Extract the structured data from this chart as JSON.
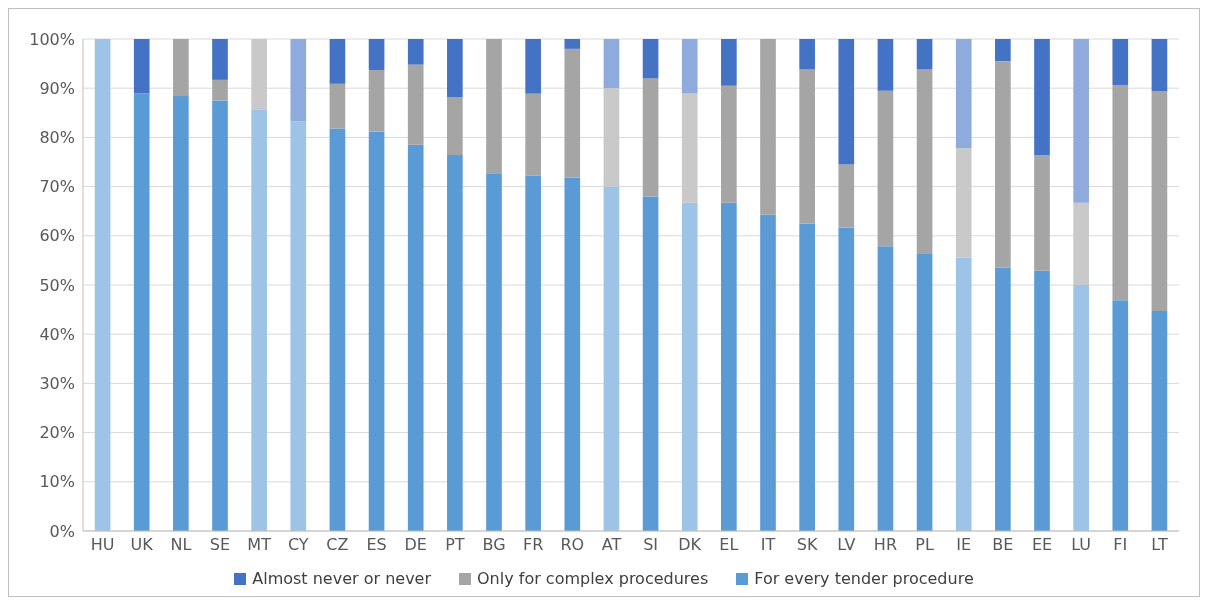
{
  "chart_data": {
    "type": "bar",
    "stacked": true,
    "categories": [
      "HU",
      "UK",
      "NL",
      "SE",
      "MT",
      "CY",
      "CZ",
      "ES",
      "DE",
      "PT",
      "BG",
      "FR",
      "RO",
      "AT",
      "SI",
      "DK",
      "EL",
      "IT",
      "SK",
      "LV",
      "HR",
      "PL",
      "IE",
      "BE",
      "EE",
      "LU",
      "FI",
      "LT"
    ],
    "series": [
      {
        "name": "For every tender procedure",
        "color": "#5b9bd5",
        "colors": [
          "#9dc3e6",
          "#5b9bd5",
          "#5b9bd5",
          "#5b9bd5",
          "#9dc3e6",
          "#9dc3e6",
          "#5b9bd5",
          "#5b9bd5",
          "#5b9bd5",
          "#5b9bd5",
          "#5b9bd5",
          "#5b9bd5",
          "#5b9bd5",
          "#9dc3e6",
          "#5b9bd5",
          "#9dc3e6",
          "#5b9bd5",
          "#5b9bd5",
          "#5b9bd5",
          "#5b9bd5",
          "#5b9bd5",
          "#5b9bd5",
          "#9dc3e6",
          "#5b9bd5",
          "#5b9bd5",
          "#9dc3e6",
          "#5b9bd5",
          "#5b9bd5"
        ],
        "values": [
          100,
          88.9,
          88.4,
          87.5,
          85.7,
          83.3,
          81.8,
          81.2,
          78.5,
          76.4,
          72.7,
          72.2,
          71.8,
          70,
          68,
          66.7,
          66.7,
          64.3,
          62.5,
          61.7,
          57.9,
          56.3,
          55.6,
          53.5,
          52.9,
          50,
          46.9,
          44.7
        ]
      },
      {
        "name": "Only for complex procedures",
        "color": "#a5a5a5",
        "colors": [
          "#c9c9c9",
          "#a5a5a5",
          "#a5a5a5",
          "#a5a5a5",
          "#c9c9c9",
          "#c9c9c9",
          "#a5a5a5",
          "#a5a5a5",
          "#a5a5a5",
          "#a5a5a5",
          "#a5a5a5",
          "#a5a5a5",
          "#a5a5a5",
          "#c9c9c9",
          "#a5a5a5",
          "#c9c9c9",
          "#a5a5a5",
          "#a5a5a5",
          "#a5a5a5",
          "#a5a5a5",
          "#a5a5a5",
          "#a5a5a5",
          "#c9c9c9",
          "#a5a5a5",
          "#a5a5a5",
          "#c9c9c9",
          "#a5a5a5",
          "#a5a5a5"
        ],
        "values": [
          0,
          0,
          11.6,
          4.2,
          14.3,
          0,
          9.1,
          12.5,
          16.3,
          11.8,
          27.3,
          16.7,
          26.2,
          20,
          24,
          22.2,
          23.8,
          35.7,
          31.3,
          12.8,
          31.6,
          37.5,
          22.2,
          42,
          23.5,
          16.7,
          43.7,
          44.7
        ]
      },
      {
        "name": "Almost never or never",
        "color": "#4472c4",
        "colors": [
          "#8faadc",
          "#4472c4",
          "#4472c4",
          "#4472c4",
          "#8faadc",
          "#8faadc",
          "#4472c4",
          "#4472c4",
          "#4472c4",
          "#4472c4",
          "#4472c4",
          "#4472c4",
          "#4472c4",
          "#8faadc",
          "#4472c4",
          "#8faadc",
          "#4472c4",
          "#4472c4",
          "#4472c4",
          "#4472c4",
          "#4472c4",
          "#4472c4",
          "#8faadc",
          "#4472c4",
          "#4472c4",
          "#8faadc",
          "#4472c4",
          "#4472c4"
        ],
        "values": [
          0,
          11.1,
          0,
          8.3,
          0,
          16.7,
          9.1,
          6.3,
          5.2,
          11.8,
          0,
          11.1,
          2,
          10,
          8,
          11.1,
          9.5,
          0,
          6.2,
          25.5,
          10.5,
          6.2,
          22.2,
          4.5,
          23.6,
          33.3,
          9.4,
          10.6
        ]
      }
    ],
    "ylim": [
      0,
      100
    ],
    "yticks": [
      {
        "value": 0,
        "label": "0%"
      },
      {
        "value": 10,
        "label": "10%"
      },
      {
        "value": 20,
        "label": "20%"
      },
      {
        "value": 30,
        "label": "30%"
      },
      {
        "value": 40,
        "label": "40%"
      },
      {
        "value": 50,
        "label": "50%"
      },
      {
        "value": 60,
        "label": "60%"
      },
      {
        "value": 70,
        "label": "70%"
      },
      {
        "value": 80,
        "label": "80%"
      },
      {
        "value": 90,
        "label": "90%"
      },
      {
        "value": 100,
        "label": "100%"
      }
    ],
    "grid": "y",
    "legend": "bottom"
  }
}
